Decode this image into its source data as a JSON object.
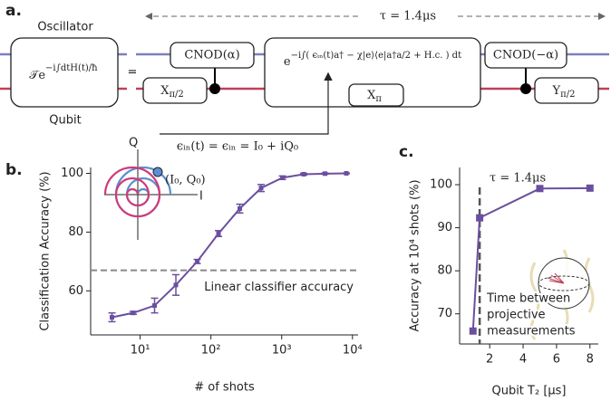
{
  "diagram": {
    "panel_label": "a.",
    "tau": "τ = 1.4μs",
    "oscillator": "Oscillator",
    "qubit": "Qubit",
    "unitary": {
      "base": "𝒯e",
      "exponent": "−i∫dtH(t)/ħ"
    },
    "equals": "=",
    "gates": {
      "cnod_plus": "CNOD(α)",
      "x_half": {
        "base": "X",
        "sub": "π/2"
      },
      "evolution": {
        "base": "e",
        "exponent": "−i∫( ϵᵢₙ(t)a† − χ|e⟩⟨e|a†a/2 + H.c. ) dt"
      },
      "x_pi": {
        "base": "X",
        "sub": "π"
      },
      "cnod_minus": "CNOD(−α)",
      "y_half": {
        "base": "Y",
        "sub": "π/2"
      }
    },
    "signal": "ϵᵢₙ(t) = ϵᵢₙ = I₀ + iQ₀"
  },
  "chart_data": [
    {
      "type": "line",
      "panel_label": "b.",
      "xlabel": "# of shots",
      "ylabel": "Classification Accuracy (%)",
      "xscale": "log",
      "x": [
        4,
        8,
        16,
        32,
        64,
        128,
        256,
        512,
        1024,
        2048,
        4096,
        8192
      ],
      "values": [
        51,
        52.5,
        55,
        62,
        70,
        79.5,
        88,
        95,
        98.5,
        99.7,
        99.9,
        100
      ],
      "errors": [
        1.5,
        0.5,
        2.5,
        3.5,
        0.7,
        1,
        1.5,
        1.2,
        0.6,
        0.3,
        0.2,
        0.1
      ],
      "color": "#6b4f9e",
      "xlim": [
        2,
        12000
      ],
      "ylim": [
        45,
        102
      ],
      "xticks": [
        {
          "value": 10,
          "label": "10¹"
        },
        {
          "value": 100,
          "label": "10²"
        },
        {
          "value": 1000,
          "label": "10³"
        },
        {
          "value": 10000,
          "label": "10⁴"
        }
      ],
      "yticks": [
        60,
        80,
        100
      ],
      "reference": {
        "value": 67,
        "label": "Linear classifier accuracy",
        "color": "#888888"
      },
      "inset": {
        "q_label": "Q",
        "i_label": "I",
        "point_label": "(I₀, Q₀)"
      }
    },
    {
      "type": "line",
      "panel_label": "c.",
      "xlabel": "Qubit T₂ [μs]",
      "ylabel": "Accuracy at 10⁴ shots (%)",
      "x": [
        1,
        1.4,
        5,
        8
      ],
      "values": [
        66,
        92.3,
        99.1,
        99.2
      ],
      "color": "#6b4f9e",
      "xlim": [
        0.2,
        8.5
      ],
      "ylim": [
        63,
        104
      ],
      "xticks": [
        2,
        4,
        6,
        8
      ],
      "yticks": [
        70,
        80,
        90,
        100
      ],
      "marker_line": {
        "value": 1.4,
        "label": "τ = 1.4μs",
        "color": "#555555"
      },
      "annotation": [
        "Time between",
        "projective",
        "measurements"
      ]
    }
  ]
}
